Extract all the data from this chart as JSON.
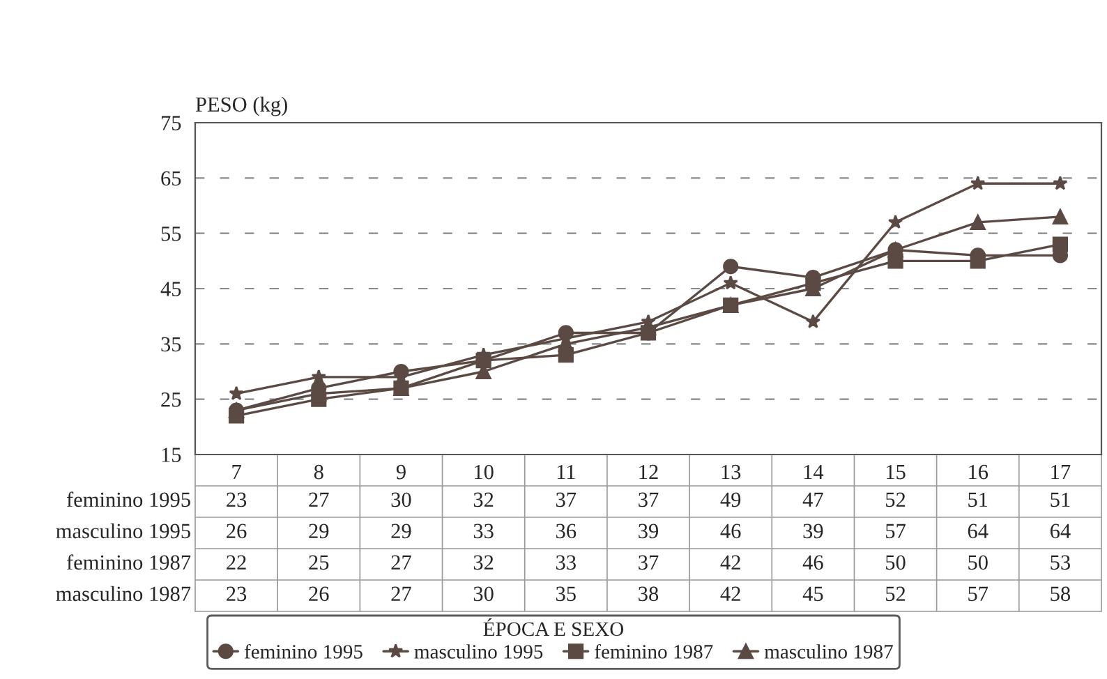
{
  "chart_data": {
    "type": "line",
    "ylabel": "PESO (kg)",
    "legend_title": "ÉPOCA E SEXO",
    "legend": "bottom",
    "grid": "y",
    "line_style": "solid",
    "data_labels": true,
    "categories": [
      "7",
      "8",
      "9",
      "10",
      "11",
      "12",
      "13",
      "14",
      "15",
      "16",
      "17"
    ],
    "ylim": [
      15,
      75
    ],
    "yticks": [
      15,
      25,
      35,
      45,
      55,
      65,
      75
    ],
    "series": [
      {
        "name": "feminino 1995",
        "color": "#5b4a44",
        "marker": "circle",
        "values": [
          23,
          27,
          30,
          32,
          37,
          37,
          49,
          47,
          52,
          51,
          51
        ]
      },
      {
        "name": "masculino 1995",
        "color": "#5b4a44",
        "marker": "star",
        "values": [
          26,
          29,
          29,
          33,
          36,
          39,
          46,
          39,
          57,
          64,
          64
        ]
      },
      {
        "name": "feminino 1987",
        "color": "#5b4a44",
        "marker": "square",
        "values": [
          22,
          25,
          27,
          32,
          33,
          37,
          42,
          46,
          50,
          50,
          53
        ]
      },
      {
        "name": "masculino 1987",
        "color": "#5b4a44",
        "marker": "triangle",
        "values": [
          23,
          26,
          27,
          30,
          35,
          38,
          42,
          45,
          52,
          57,
          58
        ]
      }
    ]
  }
}
